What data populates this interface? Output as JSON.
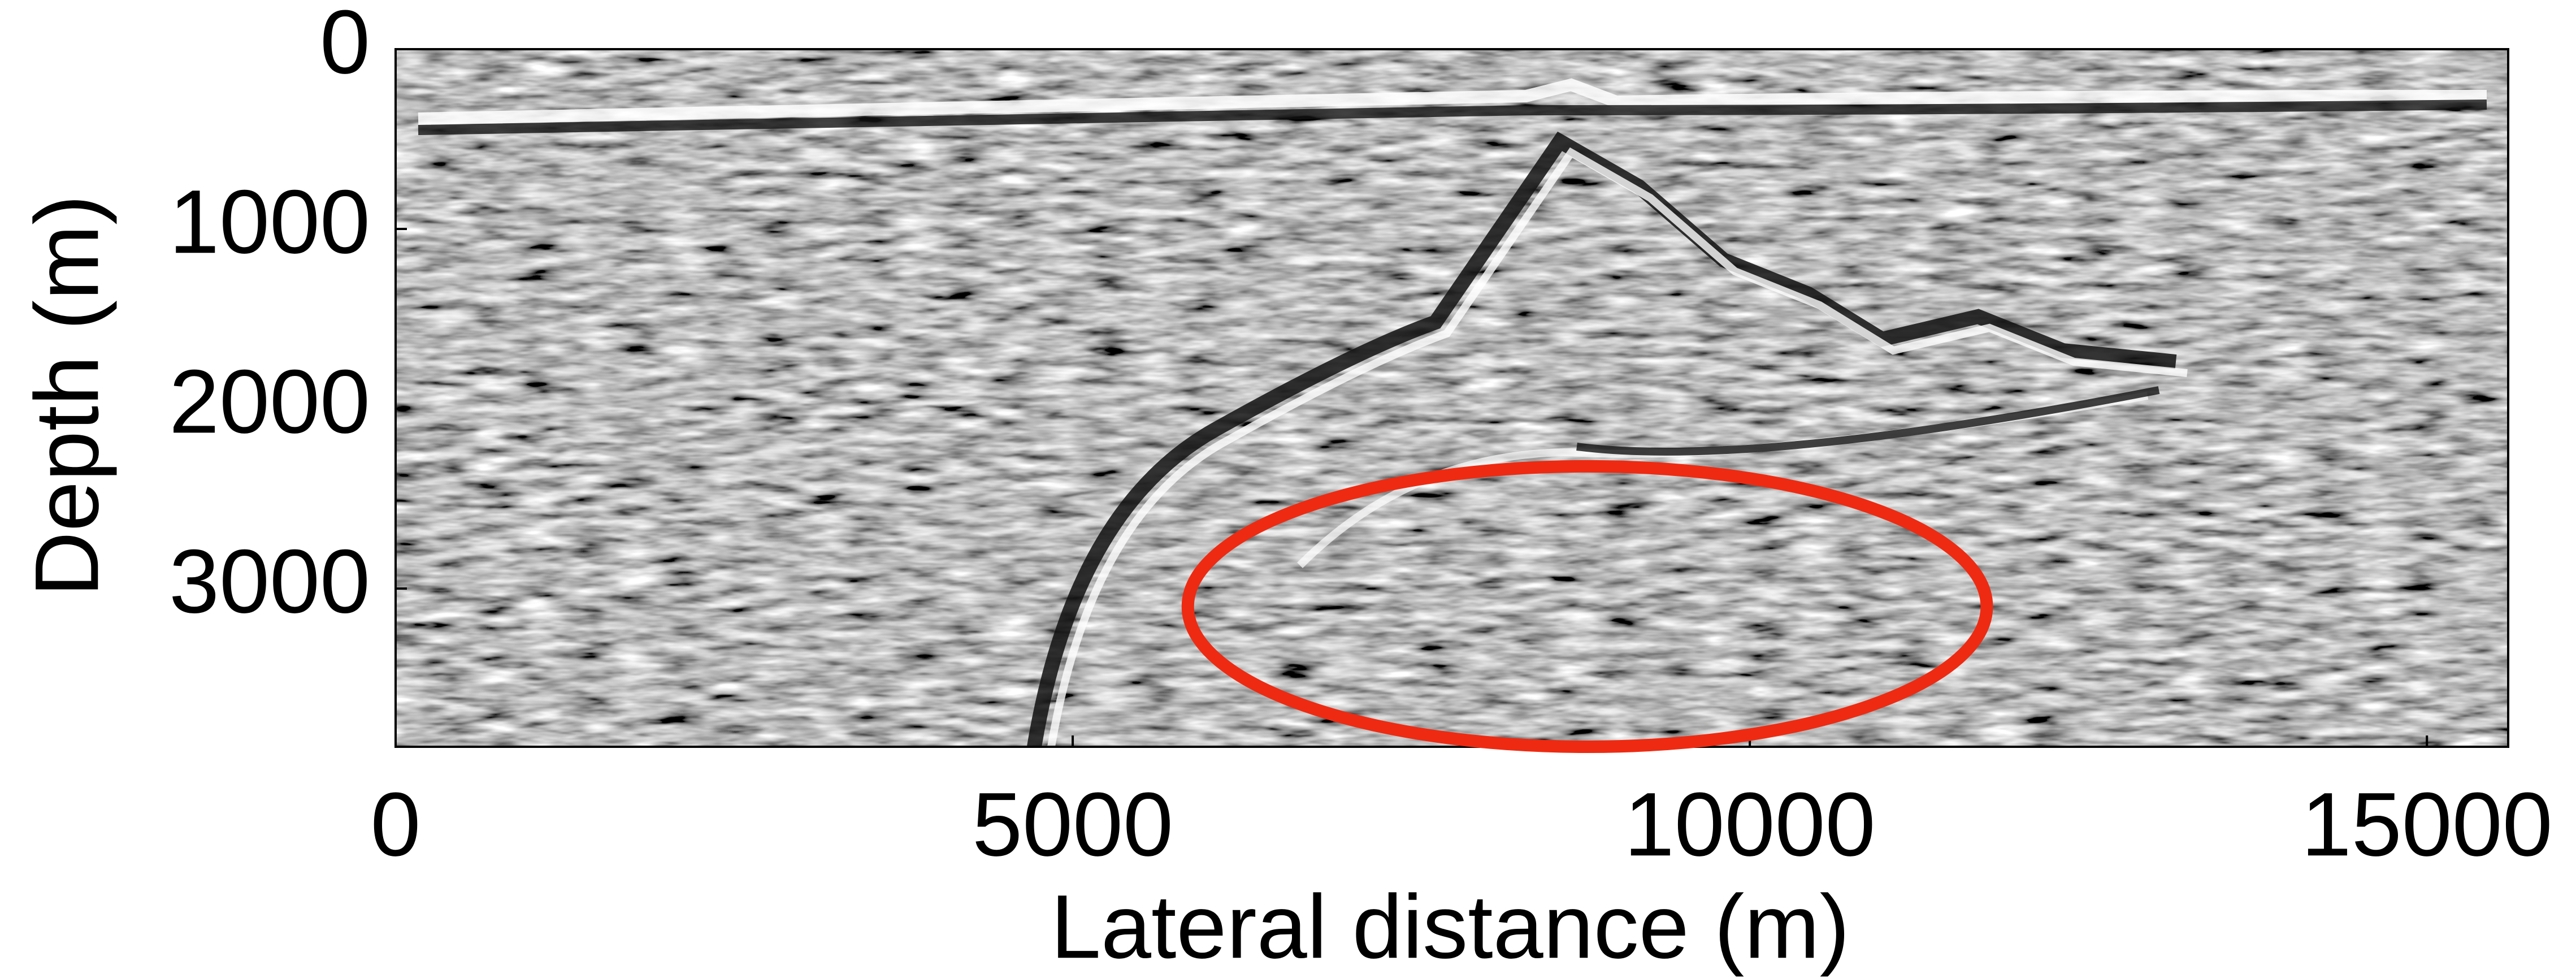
{
  "chart_data": {
    "type": "image",
    "x_label": "Lateral distance (m)",
    "y_label": "Depth (m)",
    "xlim": [
      0,
      15600
    ],
    "xticks": [
      0,
      5000,
      10000,
      15000
    ],
    "ylim": [
      0,
      3880
    ],
    "yticks": [
      0,
      1000,
      2000,
      3000
    ],
    "y_inverted": true,
    "annotations": [
      {
        "type": "ellipse",
        "cx": 8800,
        "cy": 3100,
        "rx": 2950,
        "ry": 780,
        "color": "#ee2a12"
      }
    ]
  }
}
